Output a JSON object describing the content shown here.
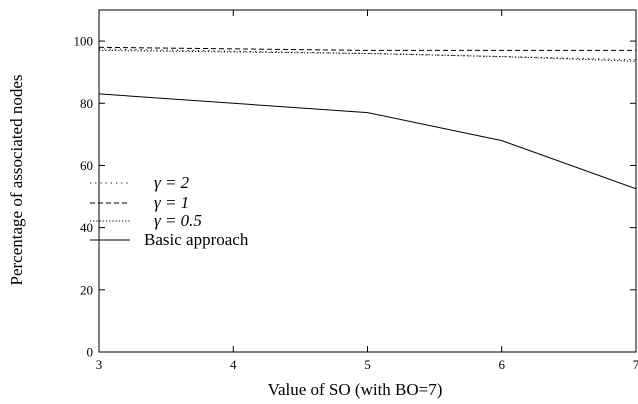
{
  "chart_data": {
    "type": "line",
    "title": "",
    "xlabel": "Value of SO (with BO=7)",
    "ylabel": "Percentage of associated nodes",
    "xlim": [
      3,
      7
    ],
    "ylim": [
      0,
      110
    ],
    "x_ticks": [
      "3",
      "4",
      "5",
      "6",
      "7"
    ],
    "y_ticks": [
      "0",
      "20",
      "40",
      "60",
      "80",
      "100"
    ],
    "grid": false,
    "legend_position": "left-middle",
    "x": [
      3,
      5,
      6,
      7
    ],
    "series": [
      {
        "name": "γ = 2",
        "style": "dotted",
        "values": [
          97.5,
          96.0,
          95.0,
          94.0
        ]
      },
      {
        "name": "γ = 1",
        "style": "dashed",
        "values": [
          98.0,
          97.0,
          97.0,
          97.0
        ]
      },
      {
        "name": "γ = 0.5",
        "style": "densely-dotted",
        "values": [
          97.0,
          96.0,
          95.0,
          93.5
        ]
      },
      {
        "name": "Basic approach",
        "style": "solid",
        "values": [
          83.0,
          77.0,
          68.0,
          52.5
        ]
      }
    ]
  }
}
